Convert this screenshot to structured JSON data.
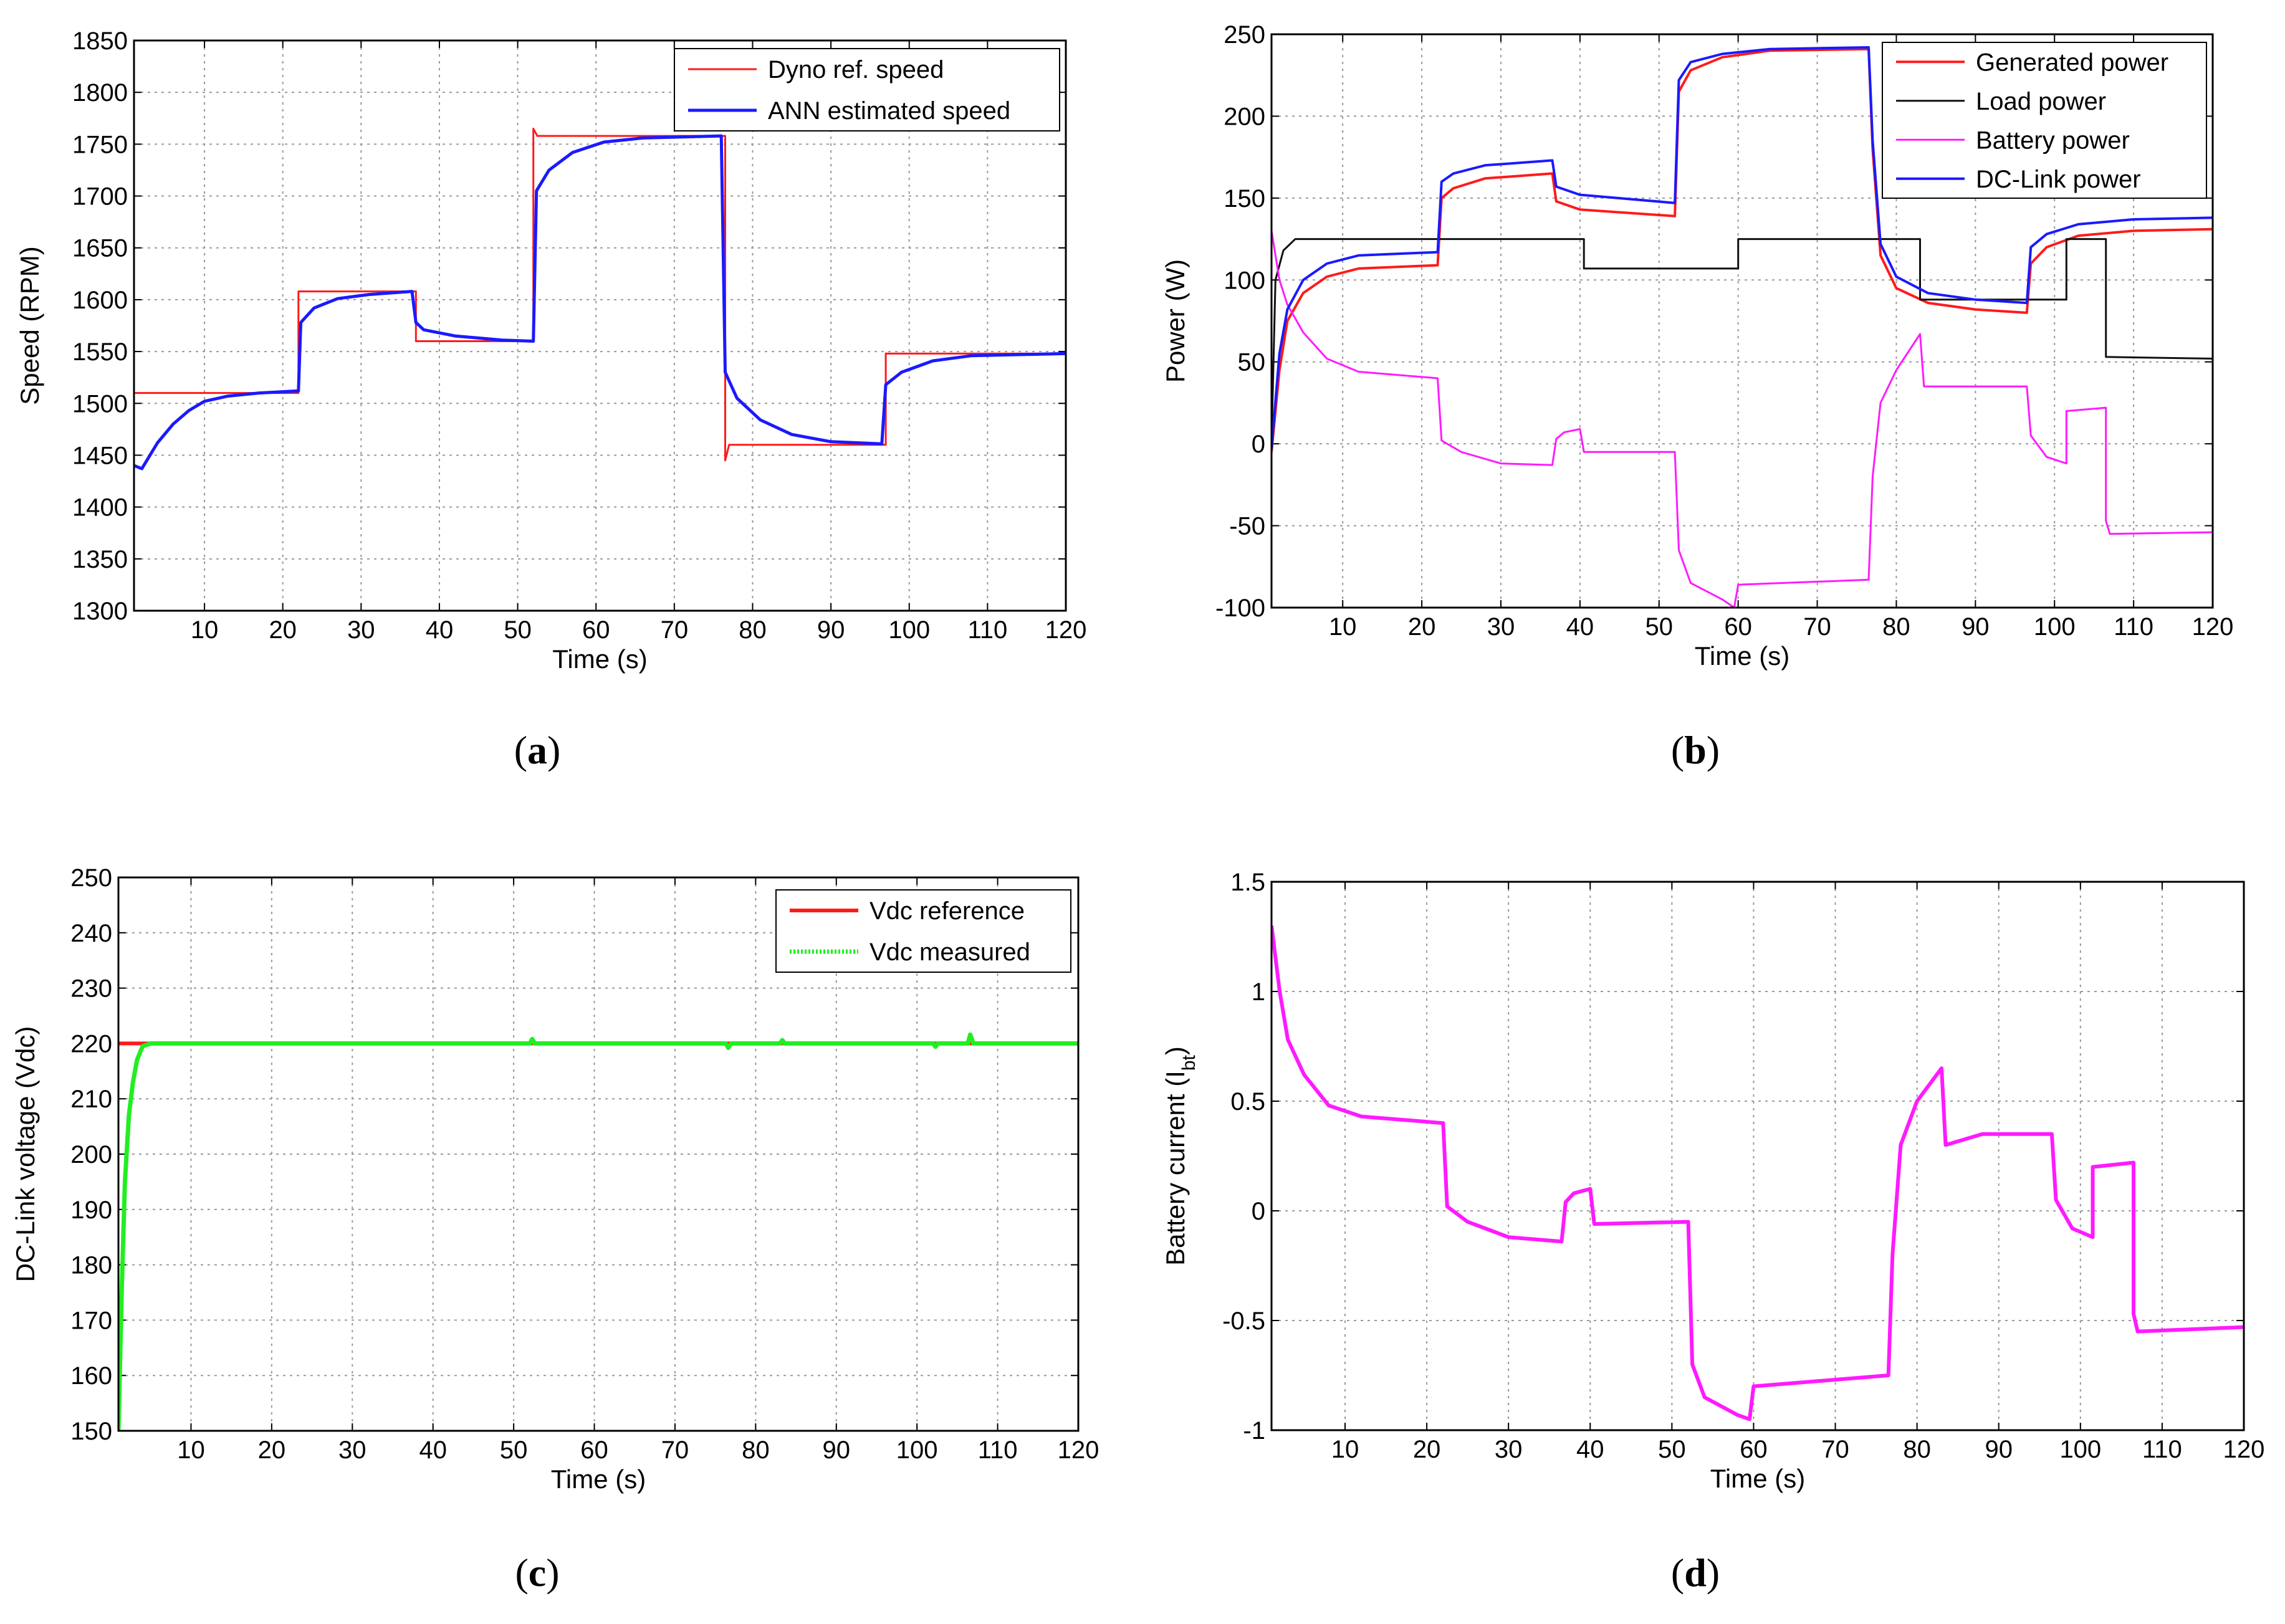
{
  "chart_data": [
    {
      "type": "line",
      "panel": "a",
      "caption": [
        "(",
        "a",
        ")"
      ],
      "xlabel": "Time (s)",
      "ylabel": "Speed (RPM)",
      "xlim": [
        1,
        120
      ],
      "ylim": [
        1300,
        1850
      ],
      "xticks": [
        "10",
        "20",
        "30",
        "40",
        "50",
        "60",
        "70",
        "80",
        "90",
        "100",
        "110",
        "120"
      ],
      "yticks": [
        "1300",
        "1350",
        "1400",
        "1450",
        "1500",
        "1550",
        "1600",
        "1650",
        "1700",
        "1750",
        "1800",
        "1850"
      ],
      "grid": true,
      "legend_position": "top-right",
      "series": [
        {
          "name": "Dyno ref. speed",
          "color": "#ff1a1a",
          "width": 3,
          "points": [
            [
              1,
              1510
            ],
            [
              22,
              1510
            ],
            [
              22,
              1608
            ],
            [
              37,
              1608
            ],
            [
              37,
              1560
            ],
            [
              52,
              1560
            ],
            [
              52,
              1765
            ],
            [
              52.5,
              1758
            ],
            [
              76.5,
              1758
            ],
            [
              76.5,
              1445
            ],
            [
              77,
              1460
            ],
            [
              97,
              1460
            ],
            [
              97,
              1548
            ],
            [
              120,
              1548
            ]
          ]
        },
        {
          "name": "ANN estimated speed",
          "color": "#1a1aff",
          "width": 5,
          "points": [
            [
              1,
              1440
            ],
            [
              2,
              1437
            ],
            [
              4,
              1462
            ],
            [
              6,
              1480
            ],
            [
              8,
              1493
            ],
            [
              10,
              1502
            ],
            [
              13,
              1507
            ],
            [
              17,
              1510
            ],
            [
              22,
              1512
            ],
            [
              22.3,
              1578
            ],
            [
              24,
              1592
            ],
            [
              27,
              1601
            ],
            [
              31,
              1605
            ],
            [
              36.5,
              1608
            ],
            [
              37,
              1578
            ],
            [
              38,
              1571
            ],
            [
              42,
              1565
            ],
            [
              48,
              1561
            ],
            [
              52,
              1560
            ],
            [
              52.4,
              1705
            ],
            [
              54,
              1725
            ],
            [
              57,
              1742
            ],
            [
              61,
              1752
            ],
            [
              66,
              1756
            ],
            [
              76,
              1758
            ],
            [
              76.5,
              1530
            ],
            [
              78,
              1505
            ],
            [
              81,
              1484
            ],
            [
              85,
              1470
            ],
            [
              90,
              1463
            ],
            [
              96.5,
              1461
            ],
            [
              97,
              1518
            ],
            [
              99,
              1530
            ],
            [
              103,
              1541
            ],
            [
              108,
              1546
            ],
            [
              120,
              1548
            ]
          ]
        }
      ]
    },
    {
      "type": "line",
      "panel": "b",
      "caption": [
        "(",
        "b",
        ")"
      ],
      "xlabel": "Time (s)",
      "ylabel": "Power (W)",
      "xlim": [
        1,
        120
      ],
      "ylim": [
        -100,
        250
      ],
      "xticks": [
        "10",
        "20",
        "30",
        "40",
        "50",
        "60",
        "70",
        "80",
        "90",
        "100",
        "110",
        "120"
      ],
      "yticks": [
        "-100",
        "-50",
        "0",
        "50",
        "100",
        "150",
        "200",
        "250"
      ],
      "grid": true,
      "legend_position": "top-right",
      "series": [
        {
          "name": "Generated power",
          "color": "#ff1a1a",
          "width": 4,
          "points": [
            [
              1,
              -5
            ],
            [
              2,
              45
            ],
            [
              3,
              75
            ],
            [
              5,
              92
            ],
            [
              8,
              102
            ],
            [
              12,
              107
            ],
            [
              22,
              109
            ],
            [
              22.5,
              150
            ],
            [
              24,
              156
            ],
            [
              28,
              162
            ],
            [
              36.5,
              165
            ],
            [
              37,
              148
            ],
            [
              40,
              143
            ],
            [
              52,
              139
            ],
            [
              52.5,
              215
            ],
            [
              54,
              228
            ],
            [
              58,
              236
            ],
            [
              64,
              240
            ],
            [
              76.5,
              241
            ],
            [
              77,
              180
            ],
            [
              78,
              115
            ],
            [
              80,
              95
            ],
            [
              84,
              86
            ],
            [
              90,
              82
            ],
            [
              96.5,
              80
            ],
            [
              97,
              110
            ],
            [
              99,
              120
            ],
            [
              103,
              127
            ],
            [
              110,
              130
            ],
            [
              120,
              131
            ]
          ]
        },
        {
          "name": "Load power",
          "color": "#111111",
          "width": 3,
          "points": [
            [
              1,
              0
            ],
            [
              1.5,
              100
            ],
            [
              2.5,
              118
            ],
            [
              4,
              125
            ],
            [
              40.5,
              125
            ],
            [
              40.5,
              107
            ],
            [
              60,
              107
            ],
            [
              60,
              125
            ],
            [
              83,
              125
            ],
            [
              83,
              88
            ],
            [
              101.5,
              88
            ],
            [
              101.5,
              125
            ],
            [
              106.5,
              125
            ],
            [
              106.5,
              53
            ],
            [
              120,
              52
            ]
          ]
        },
        {
          "name": "Battery power",
          "color": "#ff1aff",
          "width": 3,
          "points": [
            [
              1,
              130
            ],
            [
              2,
              100
            ],
            [
              3,
              85
            ],
            [
              5,
              68
            ],
            [
              8,
              52
            ],
            [
              12,
              44
            ],
            [
              22,
              40
            ],
            [
              22.5,
              2
            ],
            [
              25,
              -5
            ],
            [
              30,
              -12
            ],
            [
              36.5,
              -13
            ],
            [
              37,
              3
            ],
            [
              38,
              7
            ],
            [
              40,
              9
            ],
            [
              40.5,
              -5
            ],
            [
              52,
              -5
            ],
            [
              52.5,
              -65
            ],
            [
              54,
              -85
            ],
            [
              58,
              -95
            ],
            [
              59.5,
              -100
            ],
            [
              60,
              -86
            ],
            [
              76.5,
              -83
            ],
            [
              77,
              -20
            ],
            [
              78,
              25
            ],
            [
              80,
              45
            ],
            [
              83,
              67
            ],
            [
              83.5,
              35
            ],
            [
              88,
              35
            ],
            [
              96.5,
              35
            ],
            [
              97,
              5
            ],
            [
              99,
              -8
            ],
            [
              101.5,
              -12
            ],
            [
              101.5,
              20
            ],
            [
              106.5,
              22
            ],
            [
              106.5,
              -47
            ],
            [
              107,
              -55
            ],
            [
              120,
              -54
            ]
          ]
        },
        {
          "name": "DC-Link power",
          "color": "#1a1aff",
          "width": 4,
          "points": [
            [
              1,
              -3
            ],
            [
              2,
              55
            ],
            [
              3,
              82
            ],
            [
              5,
              100
            ],
            [
              8,
              110
            ],
            [
              12,
              115
            ],
            [
              22,
              117
            ],
            [
              22.5,
              160
            ],
            [
              24,
              165
            ],
            [
              28,
              170
            ],
            [
              36.5,
              173
            ],
            [
              37,
              157
            ],
            [
              40,
              152
            ],
            [
              52,
              147
            ],
            [
              52.5,
              222
            ],
            [
              54,
              233
            ],
            [
              58,
              238
            ],
            [
              64,
              241
            ],
            [
              76.5,
              242
            ],
            [
              77,
              185
            ],
            [
              78,
              122
            ],
            [
              80,
              102
            ],
            [
              84,
              92
            ],
            [
              90,
              88
            ],
            [
              96.5,
              86
            ],
            [
              97,
              120
            ],
            [
              99,
              128
            ],
            [
              103,
              134
            ],
            [
              110,
              137
            ],
            [
              120,
              138
            ]
          ]
        }
      ]
    },
    {
      "type": "line",
      "panel": "c",
      "caption": [
        "(",
        "c",
        ")"
      ],
      "xlabel": "Time (s)",
      "ylabel": "DC-Link voltage (Vdc)",
      "xlim": [
        1,
        120
      ],
      "ylim": [
        150,
        250
      ],
      "xticks": [
        "10",
        "20",
        "30",
        "40",
        "50",
        "60",
        "70",
        "80",
        "90",
        "100",
        "110",
        "120"
      ],
      "yticks": [
        "150",
        "160",
        "170",
        "180",
        "190",
        "200",
        "210",
        "220",
        "230",
        "240",
        "250"
      ],
      "grid": true,
      "legend_position": "top-right",
      "series": [
        {
          "name": "Vdc reference",
          "color": "#ff1a1a",
          "width": 6,
          "points": [
            [
              1,
              220
            ],
            [
              120,
              220
            ]
          ]
        },
        {
          "name": "Vdc measured",
          "color": "#22ee22",
          "width": 7,
          "dotted_legend": true,
          "points": [
            [
              1,
              150
            ],
            [
              1.4,
              175
            ],
            [
              1.8,
              195
            ],
            [
              2.3,
              207
            ],
            [
              2.8,
              213
            ],
            [
              3.3,
              217
            ],
            [
              4,
              219.5
            ],
            [
              5,
              220
            ],
            [
              52,
              220
            ],
            [
              52.3,
              220.8
            ],
            [
              52.6,
              220
            ],
            [
              76.3,
              220
            ],
            [
              76.6,
              219.2
            ],
            [
              77,
              220
            ],
            [
              83,
              220
            ],
            [
              83.3,
              220.6
            ],
            [
              83.6,
              220
            ],
            [
              102,
              220
            ],
            [
              102.3,
              219.4
            ],
            [
              102.6,
              220
            ],
            [
              106.3,
              220
            ],
            [
              106.6,
              221.6
            ],
            [
              107,
              220
            ],
            [
              120,
              220
            ]
          ]
        }
      ]
    },
    {
      "type": "line",
      "panel": "d",
      "caption": [
        "(",
        "d",
        ")"
      ],
      "xlabel": "Time (s)",
      "ylabel": "Battery current (I",
      "ylabel_sub": "bt",
      "ylabel_end": ")",
      "xlim": [
        1,
        120
      ],
      "ylim": [
        -1,
        1.5
      ],
      "xticks": [
        "10",
        "20",
        "30",
        "40",
        "50",
        "60",
        "70",
        "80",
        "90",
        "100",
        "110",
        "120"
      ],
      "yticks": [
        "-1",
        "-0.5",
        "0",
        "0.5",
        "1",
        "1.5"
      ],
      "grid": true,
      "legend_position": "none",
      "series": [
        {
          "name": "Battery current",
          "color": "#ff1aff",
          "width": 6,
          "points": [
            [
              1,
              1.3
            ],
            [
              2,
              1.0
            ],
            [
              3,
              0.78
            ],
            [
              5,
              0.62
            ],
            [
              8,
              0.48
            ],
            [
              12,
              0.43
            ],
            [
              22,
              0.4
            ],
            [
              22.5,
              0.02
            ],
            [
              25,
              -0.05
            ],
            [
              30,
              -0.12
            ],
            [
              36.5,
              -0.14
            ],
            [
              37,
              0.04
            ],
            [
              38,
              0.08
            ],
            [
              40,
              0.1
            ],
            [
              40.5,
              -0.06
            ],
            [
              52,
              -0.05
            ],
            [
              52.5,
              -0.7
            ],
            [
              54,
              -0.85
            ],
            [
              58,
              -0.93
            ],
            [
              59.5,
              -0.95
            ],
            [
              60,
              -0.8
            ],
            [
              76.5,
              -0.75
            ],
            [
              77,
              -0.2
            ],
            [
              78,
              0.3
            ],
            [
              80,
              0.5
            ],
            [
              83,
              0.65
            ],
            [
              83.5,
              0.3
            ],
            [
              88,
              0.35
            ],
            [
              96.5,
              0.35
            ],
            [
              97,
              0.05
            ],
            [
              99,
              -0.08
            ],
            [
              101.5,
              -0.12
            ],
            [
              101.5,
              0.2
            ],
            [
              106.5,
              0.22
            ],
            [
              106.5,
              -0.47
            ],
            [
              107,
              -0.55
            ],
            [
              120,
              -0.53
            ]
          ]
        }
      ]
    }
  ]
}
